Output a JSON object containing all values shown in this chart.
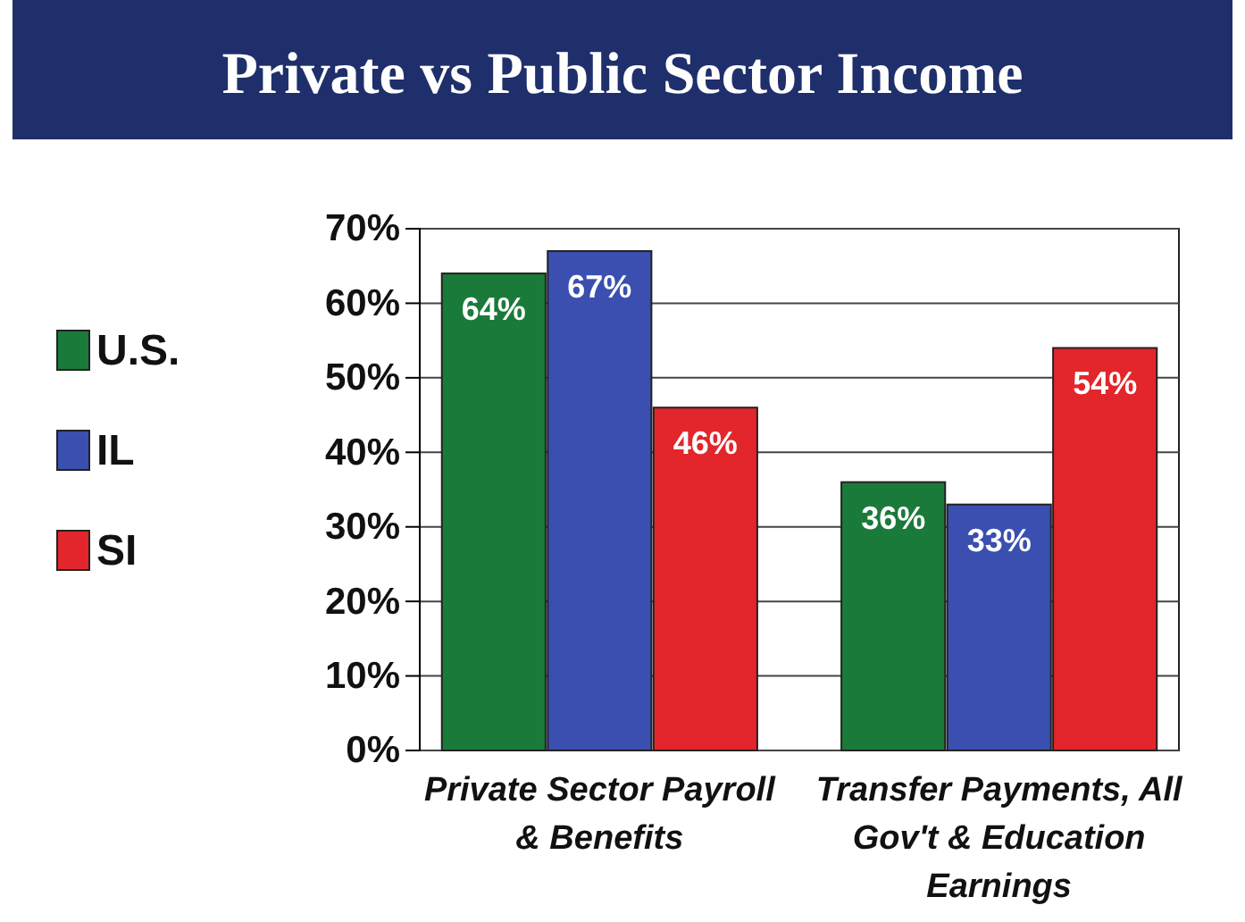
{
  "chart_data": {
    "type": "bar",
    "title": "Private vs Public Sector Income",
    "categories": [
      "Private Sector Payroll & Benefits",
      "Transfer Payments, All Gov't & Education Earnings"
    ],
    "series": [
      {
        "name": "U.S.",
        "color": "#1a7a3a",
        "values": [
          64,
          36
        ],
        "value_labels": [
          "64%",
          "36%"
        ]
      },
      {
        "name": "IL",
        "color": "#3a4fb0",
        "values": [
          67,
          33
        ],
        "value_labels": [
          "67%",
          "33%"
        ]
      },
      {
        "name": "SI",
        "color": "#e2262b",
        "values": [
          46,
          54
        ],
        "value_labels": [
          "46%",
          "54%"
        ]
      }
    ],
    "ylim": [
      0,
      70
    ],
    "yticks": [
      {
        "value": 0,
        "label": "0%"
      },
      {
        "value": 10,
        "label": "10%"
      },
      {
        "value": 20,
        "label": "20%"
      },
      {
        "value": 30,
        "label": "30%"
      },
      {
        "value": 40,
        "label": "40%"
      },
      {
        "value": 50,
        "label": "50%"
      },
      {
        "value": 60,
        "label": "60%"
      },
      {
        "value": 70,
        "label": "70%"
      }
    ],
    "grid": "y",
    "legend": "left"
  }
}
